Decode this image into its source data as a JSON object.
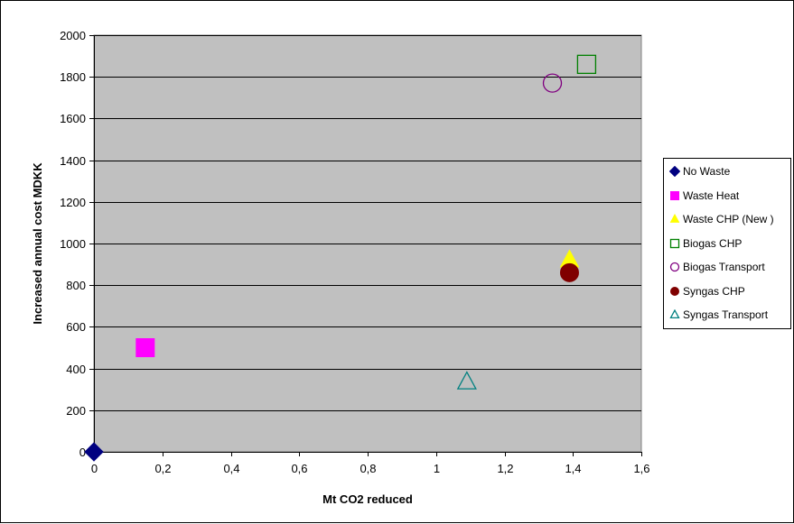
{
  "chart_data": {
    "type": "scatter",
    "title": "",
    "xlabel": "Mt CO2 reduced",
    "ylabel": "Increased annual cost MDKK",
    "xlim": [
      0,
      1.6
    ],
    "ylim": [
      0,
      2000
    ],
    "x_ticks": [
      "0",
      "0,2",
      "0,4",
      "0,6",
      "0,8",
      "1",
      "1,2",
      "1,4",
      "1,6"
    ],
    "y_ticks": [
      "0",
      "200",
      "400",
      "600",
      "800",
      "1000",
      "1200",
      "1400",
      "1600",
      "1800",
      "2000"
    ],
    "grid": "horizontal",
    "plot_background": "#c0c0c0",
    "legend_position": "right",
    "series": [
      {
        "name": "No Waste",
        "marker": "diamond",
        "filled": true,
        "color": "#000080",
        "points": [
          {
            "x": 0.0,
            "y": 0
          }
        ]
      },
      {
        "name": "Waste Heat",
        "marker": "square",
        "filled": true,
        "color": "#ff00ff",
        "points": [
          {
            "x": 0.15,
            "y": 500
          }
        ]
      },
      {
        "name": "Waste CHP (New )",
        "marker": "triangle",
        "filled": true,
        "color": "#ffff00",
        "points": [
          {
            "x": 1.39,
            "y": 920
          }
        ]
      },
      {
        "name": "Biogas CHP",
        "marker": "square",
        "filled": false,
        "color": "#008000",
        "points": [
          {
            "x": 1.44,
            "y": 1860
          }
        ]
      },
      {
        "name": "Biogas Transport",
        "marker": "circle",
        "filled": false,
        "color": "#800080",
        "points": [
          {
            "x": 1.34,
            "y": 1770
          }
        ]
      },
      {
        "name": "Syngas CHP",
        "marker": "circle",
        "filled": true,
        "color": "#800000",
        "points": [
          {
            "x": 1.39,
            "y": 860
          }
        ]
      },
      {
        "name": "Syngas Transport",
        "marker": "triangle",
        "filled": false,
        "color": "#008080",
        "points": [
          {
            "x": 1.09,
            "y": 335
          }
        ]
      }
    ]
  }
}
